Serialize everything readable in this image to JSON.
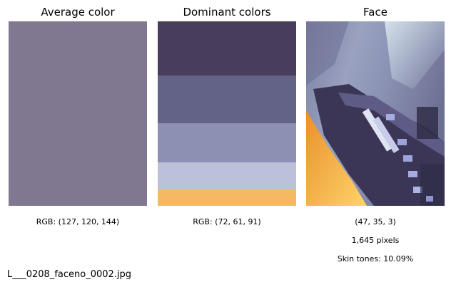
{
  "panels": [
    {
      "title": "Average color",
      "caption": "RGB: (127, 120, 144)",
      "color": "#7f7890"
    },
    {
      "title": "Dominant colors",
      "caption": "RGB: (72, 61, 91)",
      "colors": [
        "#483d5b",
        "#636387",
        "#8d90b2",
        "#bcc0d8",
        "#f5b963"
      ]
    },
    {
      "title": "Face",
      "captions": [
        "(47, 35, 3)",
        "1,645 pixels",
        "Skin tones: 10.09%"
      ]
    }
  ],
  "filename": "L___0208_faceno_0002.jpg"
}
